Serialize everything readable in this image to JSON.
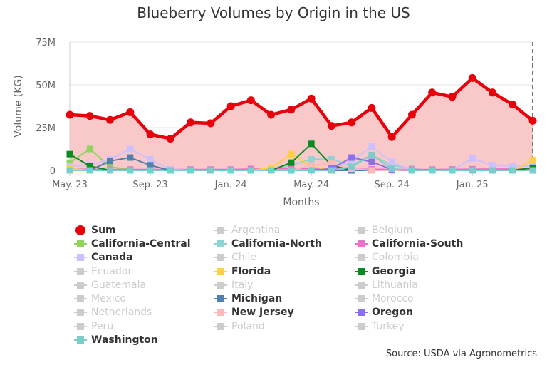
{
  "chart_data": {
    "type": "line",
    "title": "Blueberry Volumes by Origin in the US",
    "xlabel": "Months",
    "ylabel": "Volume (KG)",
    "ylim": [
      0,
      75000000
    ],
    "y_ticks": [
      "0",
      "25M",
      "50M",
      "75M"
    ],
    "x_tick_labels": [
      "May. 23",
      "Sep. 23",
      "Jan. 24",
      "May. 24",
      "Sep. 24",
      "Jan. 25"
    ],
    "x_tick_indices": [
      0,
      4,
      8,
      12,
      16,
      20
    ],
    "num_points": 24,
    "legend_position": "bottom",
    "series": [
      {
        "name": "Sum",
        "color": "#e8000b",
        "visible": true,
        "symbol": "circle",
        "values": [
          32500000,
          31800000,
          29500000,
          34000000,
          21000000,
          18500000,
          28000000,
          27500000,
          37500000,
          41000000,
          32500000,
          35500000,
          42000000,
          26000000,
          28000000,
          36500000,
          19500000,
          32500000,
          45500000,
          43000000,
          54000000,
          45500000,
          38500000,
          29000000
        ]
      },
      {
        "name": "Argentina",
        "color": "#cccccc",
        "visible": false
      },
      {
        "name": "Belgium",
        "color": "#cccccc",
        "visible": false
      },
      {
        "name": "California-Central",
        "color": "#8ed65a",
        "visible": true,
        "symbol": "square",
        "values": [
          4500000,
          12500000,
          2000000,
          500000,
          0,
          0,
          0,
          0,
          0,
          0,
          0,
          0,
          0,
          0,
          0,
          0,
          0,
          0,
          0,
          0,
          0,
          0,
          0,
          0
        ]
      },
      {
        "name": "California-North",
        "color": "#8fd3d3",
        "visible": true,
        "symbol": "square",
        "values": [
          0,
          0,
          0,
          0,
          0,
          0,
          0,
          0,
          0,
          0,
          0,
          3000000,
          6500000,
          6500000,
          3000000,
          9000000,
          3000000,
          1000000,
          0,
          0,
          0,
          0,
          0,
          0
        ]
      },
      {
        "name": "California-South",
        "color": "#f070c8",
        "visible": true,
        "symbol": "square",
        "values": [
          800000,
          600000,
          500000,
          500000,
          500000,
          500000,
          500000,
          500000,
          500000,
          800000,
          1000000,
          1000000,
          1000000,
          1000000,
          800000,
          600000,
          500000,
          500000,
          500000,
          600000,
          700000,
          800000,
          800000,
          800000
        ]
      },
      {
        "name": "Canada",
        "color": "#ccc0ff",
        "visible": true,
        "symbol": "square",
        "values": [
          2500000,
          3000000,
          6500000,
          12500000,
          6500000,
          500000,
          0,
          0,
          0,
          0,
          0,
          0,
          0,
          500000,
          5500000,
          14000000,
          5000000,
          0,
          0,
          0,
          7000000,
          3000000,
          2500000,
          2500000
        ]
      },
      {
        "name": "Chile",
        "color": "#cccccc",
        "visible": false
      },
      {
        "name": "Colombia",
        "color": "#cccccc",
        "visible": false
      },
      {
        "name": "Ecuador",
        "color": "#cccccc",
        "visible": false
      },
      {
        "name": "Florida",
        "color": "#ffd040",
        "visible": true,
        "symbol": "square",
        "values": [
          1000000,
          0,
          0,
          0,
          0,
          0,
          0,
          0,
          0,
          0,
          1500000,
          9500000,
          2500000,
          0,
          0,
          0,
          0,
          0,
          0,
          0,
          0,
          0,
          0,
          6000000
        ]
      },
      {
        "name": "Georgia",
        "color": "#0a8a20",
        "visible": true,
        "symbol": "square",
        "values": [
          9500000,
          2500000,
          0,
          0,
          0,
          0,
          0,
          0,
          0,
          0,
          0,
          4500000,
          15500000,
          3000000,
          0,
          0,
          0,
          0,
          0,
          0,
          0,
          0,
          0,
          1500000
        ]
      },
      {
        "name": "Guatemala",
        "color": "#cccccc",
        "visible": false
      },
      {
        "name": "Italy",
        "color": "#cccccc",
        "visible": false
      },
      {
        "name": "Lithuania",
        "color": "#cccccc",
        "visible": false
      },
      {
        "name": "Mexico",
        "color": "#cccccc",
        "visible": false
      },
      {
        "name": "Michigan",
        "color": "#5080b0",
        "visible": true,
        "symbol": "square",
        "values": [
          0,
          0,
          5500000,
          7500000,
          3000000,
          0,
          0,
          0,
          0,
          0,
          0,
          0,
          0,
          0,
          0,
          0,
          0,
          0,
          0,
          0,
          0,
          0,
          0,
          0
        ]
      },
      {
        "name": "Morocco",
        "color": "#cccccc",
        "visible": false
      },
      {
        "name": "Netherlands",
        "color": "#cccccc",
        "visible": false
      },
      {
        "name": "New Jersey",
        "color": "#ffb8b8",
        "visible": true,
        "symbol": "square",
        "values": [
          0,
          0,
          0,
          0,
          0,
          0,
          0,
          0,
          0,
          0,
          0,
          0,
          3000000,
          4000000,
          1000000,
          0,
          0,
          0,
          0,
          0,
          0,
          0,
          0,
          0
        ]
      },
      {
        "name": "Oregon",
        "color": "#8a6ff0",
        "visible": true,
        "symbol": "square",
        "values": [
          0,
          0,
          0,
          0,
          0,
          0,
          0,
          0,
          0,
          0,
          0,
          0,
          0,
          1000000,
          7500000,
          5000000,
          500000,
          0,
          0,
          0,
          0,
          0,
          0,
          0
        ]
      },
      {
        "name": "Peru",
        "color": "#cccccc",
        "visible": false
      },
      {
        "name": "Poland",
        "color": "#cccccc",
        "visible": false
      },
      {
        "name": "Turkey",
        "color": "#cccccc",
        "visible": false
      },
      {
        "name": "Washington",
        "color": "#7ccccc",
        "visible": true,
        "symbol": "square",
        "values": [
          0,
          0,
          0,
          0,
          0,
          0,
          0,
          0,
          0,
          0,
          0,
          0,
          0,
          0,
          2000000,
          9000000,
          1000000,
          0,
          0,
          0,
          0,
          0,
          0,
          0
        ]
      }
    ],
    "annotation_line": "dashed vertical line at last month"
  },
  "source_note": "Source: USDA via Agronometrics"
}
